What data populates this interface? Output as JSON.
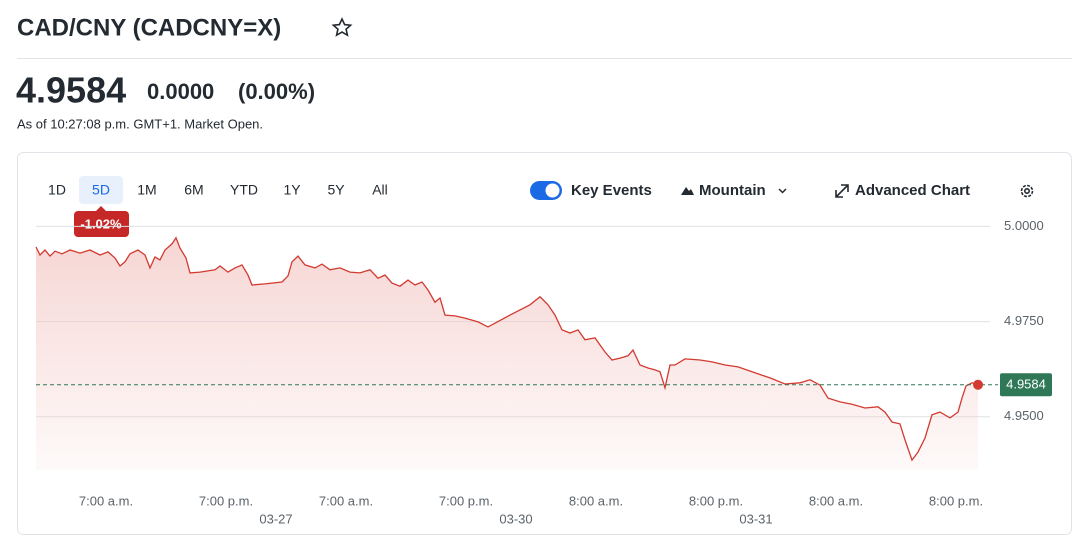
{
  "header": {
    "title": "CAD/CNY (CADCNY=X)",
    "price": "4.9584",
    "change": "0.0000",
    "change_percent": "(0.00%)",
    "as_of": "As of 10:27:08 p.m. GMT+1. Market Open."
  },
  "toolbar": {
    "ranges": [
      "1D",
      "5D",
      "1M",
      "6M",
      "YTD",
      "1Y",
      "5Y",
      "All"
    ],
    "selected_range": "5D",
    "range_change": "-1.02%",
    "key_events": "Key Events",
    "chart_type": "Mountain",
    "advanced_chart": "Advanced Chart"
  },
  "chart_data": {
    "type": "area",
    "color": "#d33a30",
    "fill_color": "#f3c9c6",
    "x": [
      0,
      0.4,
      0.9,
      1.4,
      1.9,
      2.6,
      3.4,
      4.4,
      5.4,
      6.4,
      7.2,
      7.9,
      8.4,
      8.9,
      9.4,
      10.2,
      10.9,
      11.4,
      11.9,
      12.4,
      12.9,
      13.6,
      14,
      14.4,
      15,
      15.4,
      16.4,
      17.9,
      18.4,
      19.2,
      19.9,
      20.6,
      21.2,
      21.6,
      22.9,
      24.6,
      25.2,
      25.6,
      26.2,
      26.9,
      27.9,
      28.6,
      29.4,
      30.4,
      31.4,
      32.4,
      33.4,
      34.2,
      34.9,
      35.6,
      36.4,
      37.2,
      37.9,
      38.6,
      39.2,
      39.9,
      40.4,
      40.9,
      41.9,
      42.9,
      44.2,
      45.2,
      47.4,
      49.4,
      50.4,
      51.2,
      51.9,
      52.6,
      53.4,
      54.2,
      54.9,
      55.9,
      56.9,
      57.6,
      58.4,
      59.2,
      59.7,
      60.4,
      61.2,
      61.9,
      62.4,
      62.9,
      63.4,
      63.9,
      64.9,
      66.4,
      67.6,
      68.9,
      70.2,
      71.6,
      73.4,
      74.9,
      76.4,
      77.4,
      78.4,
      79.2,
      80.4,
      81.6,
      82.9,
      84.2,
      84.9,
      85.6,
      86.4,
      86.9,
      87.6,
      88.2,
      88.9,
      89.6,
      90.4,
      91.4,
      92.2,
      92.6,
      93,
      93.6,
      94.2
    ],
    "values": [
      4.9946,
      4.9925,
      4.9938,
      4.9922,
      4.9935,
      4.9928,
      4.9938,
      4.993,
      4.9938,
      4.9925,
      4.9933,
      4.9917,
      4.9896,
      4.9907,
      4.9928,
      4.9938,
      4.9925,
      4.9891,
      4.992,
      4.9912,
      4.9938,
      4.9954,
      4.997,
      4.9943,
      4.9917,
      4.9878,
      4.988,
      4.9886,
      4.9896,
      4.988,
      4.9891,
      4.9899,
      4.9872,
      4.9846,
      4.9849,
      4.9854,
      4.987,
      4.9907,
      4.9922,
      4.9899,
      4.9891,
      4.9901,
      4.9886,
      4.9891,
      4.988,
      4.9878,
      4.9886,
      4.9864,
      4.9872,
      4.9851,
      4.9843,
      4.9859,
      4.9846,
      4.9854,
      4.9833,
      4.9801,
      4.9812,
      4.9767,
      4.9765,
      4.9759,
      4.9749,
      4.9736,
      4.9767,
      4.9794,
      4.9815,
      4.9794,
      4.9767,
      4.9728,
      4.972,
      4.9728,
      4.9702,
      4.9707,
      4.967,
      4.9649,
      4.9654,
      4.966,
      4.9675,
      4.9636,
      4.9628,
      4.9623,
      4.9618,
      4.9576,
      4.9636,
      4.9636,
      4.9652,
      4.9649,
      4.9644,
      4.9636,
      4.9631,
      4.9618,
      4.9602,
      4.9586,
      4.9589,
      4.9597,
      4.9583,
      4.9549,
      4.9539,
      4.9533,
      4.9523,
      4.9526,
      4.9512,
      4.9486,
      4.9481,
      4.9439,
      4.9386,
      4.9407,
      4.9444,
      4.9505,
      4.9512,
      4.9497,
      4.9512,
      4.9549,
      4.9581,
      4.9589,
      4.9584
    ],
    "xlim": [
      0,
      96
    ],
    "ylim": [
      4.936,
      5.003
    ],
    "yticks": [
      {
        "value": 5,
        "label": "5.0000"
      },
      {
        "value": 4.975,
        "label": "4.9750"
      },
      {
        "value": 4.95,
        "label": "4.9500"
      }
    ],
    "xticks": [
      {
        "value": 7,
        "label": "7:00 a.m."
      },
      {
        "value": 19,
        "label": "7:00 p.m."
      },
      {
        "value": 31,
        "label": "7:00 a.m."
      },
      {
        "value": 43,
        "label": "7:00 p.m."
      },
      {
        "value": 56,
        "label": "8:00 a.m."
      },
      {
        "value": 68,
        "label": "8:00 p.m."
      },
      {
        "value": 80,
        "label": "8:00 a.m."
      },
      {
        "value": 92,
        "label": "8:00 p.m."
      }
    ],
    "date_ticks": [
      {
        "value": 24,
        "label": "03-27"
      },
      {
        "value": 48,
        "label": "03-30"
      },
      {
        "value": 72,
        "label": "03-31"
      }
    ],
    "grid": true,
    "last_price": {
      "value": 4.9584,
      "label": "4.9584"
    },
    "last_price_color": "#2e7857"
  }
}
